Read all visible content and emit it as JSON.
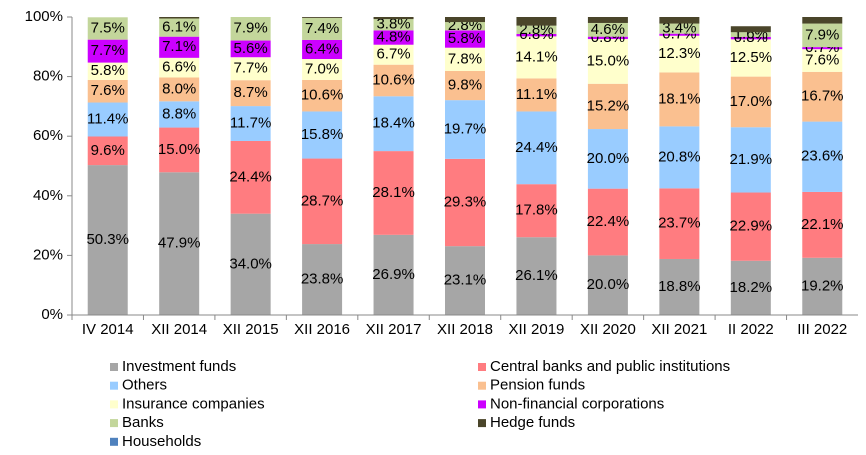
{
  "chart_data": {
    "type": "stacked_bar",
    "categories": [
      "IV 2014",
      "XII 2014",
      "XII 2015",
      "XII 2016",
      "XII 2017",
      "XII 2018",
      "XII 2019",
      "XII 2020",
      "XII 2021",
      "II 2022",
      "III 2022"
    ],
    "ylim": [
      0,
      100
    ],
    "yticks": [
      {
        "value": 0,
        "label": "0%"
      },
      {
        "value": 20,
        "label": "20%"
      },
      {
        "value": 40,
        "label": "40%"
      },
      {
        "value": 60,
        "label": "60%"
      },
      {
        "value": 80,
        "label": "80%"
      },
      {
        "value": 100,
        "label": "100%"
      }
    ],
    "series": [
      {
        "name": "Investment funds",
        "color": "#a6a6a6",
        "values": [
          50.3,
          47.9,
          34.0,
          23.8,
          26.9,
          23.1,
          26.1,
          20.0,
          18.8,
          18.2,
          19.2
        ],
        "value_labels": [
          "50.3%",
          "47.9%",
          "34.0%",
          "23.8%",
          "26.9%",
          "23.1%",
          "26.1%",
          "20.0%",
          "18.8%",
          "18.2%",
          "19.2%"
        ]
      },
      {
        "name": "Central banks and public institutions",
        "color": "#ff7c80",
        "values": [
          9.6,
          15.0,
          24.4,
          28.7,
          28.1,
          29.3,
          17.8,
          22.4,
          23.7,
          22.9,
          22.1
        ],
        "value_labels": [
          "9.6%",
          "15.0%",
          "24.4%",
          "28.7%",
          "28.1%",
          "29.3%",
          "17.8%",
          "22.4%",
          "23.7%",
          "22.9%",
          "22.1%"
        ]
      },
      {
        "name": "Others",
        "color": "#99ccff",
        "values": [
          11.4,
          8.8,
          11.7,
          15.8,
          18.4,
          19.7,
          24.4,
          20.0,
          20.8,
          21.9,
          23.6
        ],
        "value_labels": [
          "11.4%",
          "8.8%",
          "11.7%",
          "15.8%",
          "18.4%",
          "19.7%",
          "24.4%",
          "20.0%",
          "20.8%",
          "21.9%",
          "23.6%"
        ]
      },
      {
        "name": "Pension funds",
        "color": "#fac090",
        "values": [
          7.6,
          8.0,
          8.7,
          10.6,
          10.6,
          9.8,
          11.1,
          15.2,
          18.1,
          17.0,
          16.7
        ],
        "value_labels": [
          "7.6%",
          "8.0%",
          "8.7%",
          "10.6%",
          "10.6%",
          "9.8%",
          "11.1%",
          "15.2%",
          "18.1%",
          "17.0%",
          "16.7%"
        ]
      },
      {
        "name": "Insurance companies",
        "color": "#ffffcc",
        "values": [
          5.8,
          6.6,
          7.7,
          7.0,
          6.7,
          7.8,
          14.1,
          15.0,
          12.3,
          12.5,
          7.6
        ],
        "value_labels": [
          "5.8%",
          "6.6%",
          "7.7%",
          "7.0%",
          "6.7%",
          "7.8%",
          "14.1%",
          "15.0%",
          "12.3%",
          "12.5%",
          "7.6%"
        ]
      },
      {
        "name": "Non-financial corporations",
        "color": "#cc00ff",
        "values": [
          7.7,
          7.1,
          5.6,
          6.4,
          4.8,
          5.8,
          0.8,
          0.8,
          0.7,
          0.8,
          0.7
        ],
        "value_labels": [
          "7.7%",
          "7.1%",
          "5.6%",
          "6.4%",
          "4.8%",
          "5.8%",
          "0.8%",
          "0.8%",
          "0.7%",
          "0.8%",
          "0.7%"
        ]
      },
      {
        "name": "Banks",
        "color": "#c3d69b",
        "values": [
          7.5,
          6.1,
          7.9,
          7.4,
          3.8,
          2.8,
          2.8,
          4.6,
          3.4,
          1.6,
          7.9
        ],
        "value_labels": [
          "7.5%",
          "6.1%",
          "7.9%",
          "7.4%",
          "3.8%",
          "2.8%",
          "2.8%",
          "4.6%",
          "3.4%",
          "1.6%",
          "7.9%"
        ]
      },
      {
        "name": "Hedge funds",
        "color": "#4a452a",
        "values": [
          0,
          0.5,
          0,
          0.3,
          0.7,
          1.7,
          2.9,
          2.0,
          2.2,
          2.0,
          2.2
        ],
        "value_labels": [
          null,
          null,
          null,
          null,
          null,
          null,
          null,
          null,
          null,
          null,
          null
        ]
      },
      {
        "name": "Households",
        "color": "#4f81bd",
        "values": [
          0,
          0,
          0,
          0,
          0,
          0,
          0,
          0,
          0,
          0,
          0
        ],
        "value_labels": [
          null,
          null,
          null,
          null,
          null,
          null,
          null,
          null,
          null,
          null,
          null
        ]
      }
    ]
  }
}
